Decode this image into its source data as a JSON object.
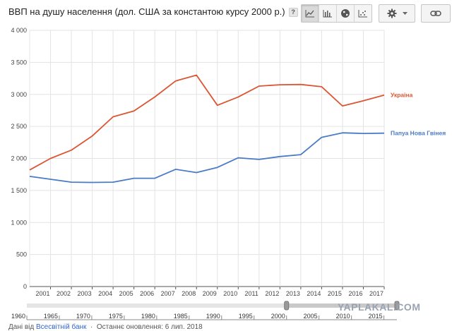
{
  "header": {
    "title": "ВВП на душу населення (дол. США за константою курсу 2000 р.)",
    "help_label": "?"
  },
  "toolbar": {
    "views": [
      {
        "icon": "line-chart-icon",
        "active": true
      },
      {
        "icon": "bar-chart-icon",
        "active": false
      },
      {
        "icon": "globe-icon",
        "active": false
      },
      {
        "icon": "scatter-chart-icon",
        "active": false
      }
    ],
    "settings_icon": "gear-icon",
    "link_icon": "link-icon"
  },
  "chart_data": {
    "type": "line",
    "title": "ВВП на душу населення (дол. США за константою курсу 2000 р.)",
    "x": [
      2000,
      2001,
      2002,
      2003,
      2004,
      2005,
      2006,
      2007,
      2008,
      2009,
      2010,
      2011,
      2012,
      2013,
      2014,
      2015,
      2016,
      2017
    ],
    "xticks": [
      2001,
      2002,
      2003,
      2004,
      2005,
      2006,
      2007,
      2008,
      2009,
      2010,
      2011,
      2012,
      2013,
      2014,
      2015,
      2016,
      2017
    ],
    "xlim": [
      2000,
      2017
    ],
    "ylim": [
      0,
      4000
    ],
    "yticks": [
      {
        "value": 0,
        "label": "0"
      },
      {
        "value": 500,
        "label": "500"
      },
      {
        "value": 1000,
        "label": "1 000"
      },
      {
        "value": 1500,
        "label": "1 500"
      },
      {
        "value": 2000,
        "label": "2 000"
      },
      {
        "value": 2500,
        "label": "2 500"
      },
      {
        "value": 3000,
        "label": "3 000"
      },
      {
        "value": 3500,
        "label": "3 500"
      },
      {
        "value": 4000,
        "label": "4 000"
      }
    ],
    "grid": true,
    "series": [
      {
        "name": "Україна",
        "color": "#dc5533",
        "values": [
          1820,
          2000,
          2130,
          2350,
          2650,
          2740,
          2960,
          3210,
          3300,
          2830,
          2960,
          3130,
          3150,
          3155,
          3120,
          2820,
          2900,
          2990
        ]
      },
      {
        "name": "Папуа Нова Гвінея",
        "color": "#4a7bc7",
        "values": [
          1720,
          1675,
          1630,
          1625,
          1630,
          1690,
          1690,
          1830,
          1780,
          1860,
          2010,
          1985,
          2030,
          2060,
          2330,
          2400,
          2390,
          2395
        ]
      }
    ],
    "timeline": {
      "ticks": [
        1960,
        1965,
        1970,
        1975,
        1980,
        1985,
        1990,
        1995,
        2000,
        2005,
        2010,
        2015
      ],
      "range": [
        1960,
        2017
      ],
      "selected": [
        2000,
        2017
      ]
    }
  },
  "footer": {
    "source_prefix": "Дані від ",
    "source_link": "Всесвітній банк",
    "updated": "Останнє оновлення: 6 лип. 2018"
  },
  "watermark": "YAPLAKAL.COM"
}
